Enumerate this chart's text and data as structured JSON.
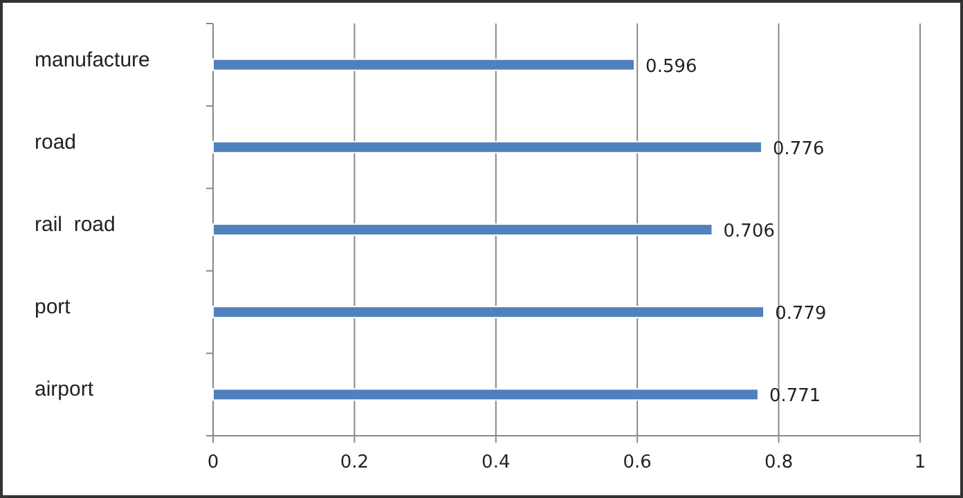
{
  "chart_data": {
    "type": "bar",
    "orientation": "horizontal",
    "categories": [
      "manufacture",
      "road",
      "rail  road",
      "port",
      "airport"
    ],
    "values": [
      0.596,
      0.776,
      0.706,
      0.779,
      0.771
    ],
    "color": "#4f81bd",
    "xlim": [
      0,
      1
    ],
    "xticks": [
      0,
      0.2,
      0.4,
      0.6,
      0.8,
      1
    ],
    "grid": "x",
    "data_labels": true
  }
}
